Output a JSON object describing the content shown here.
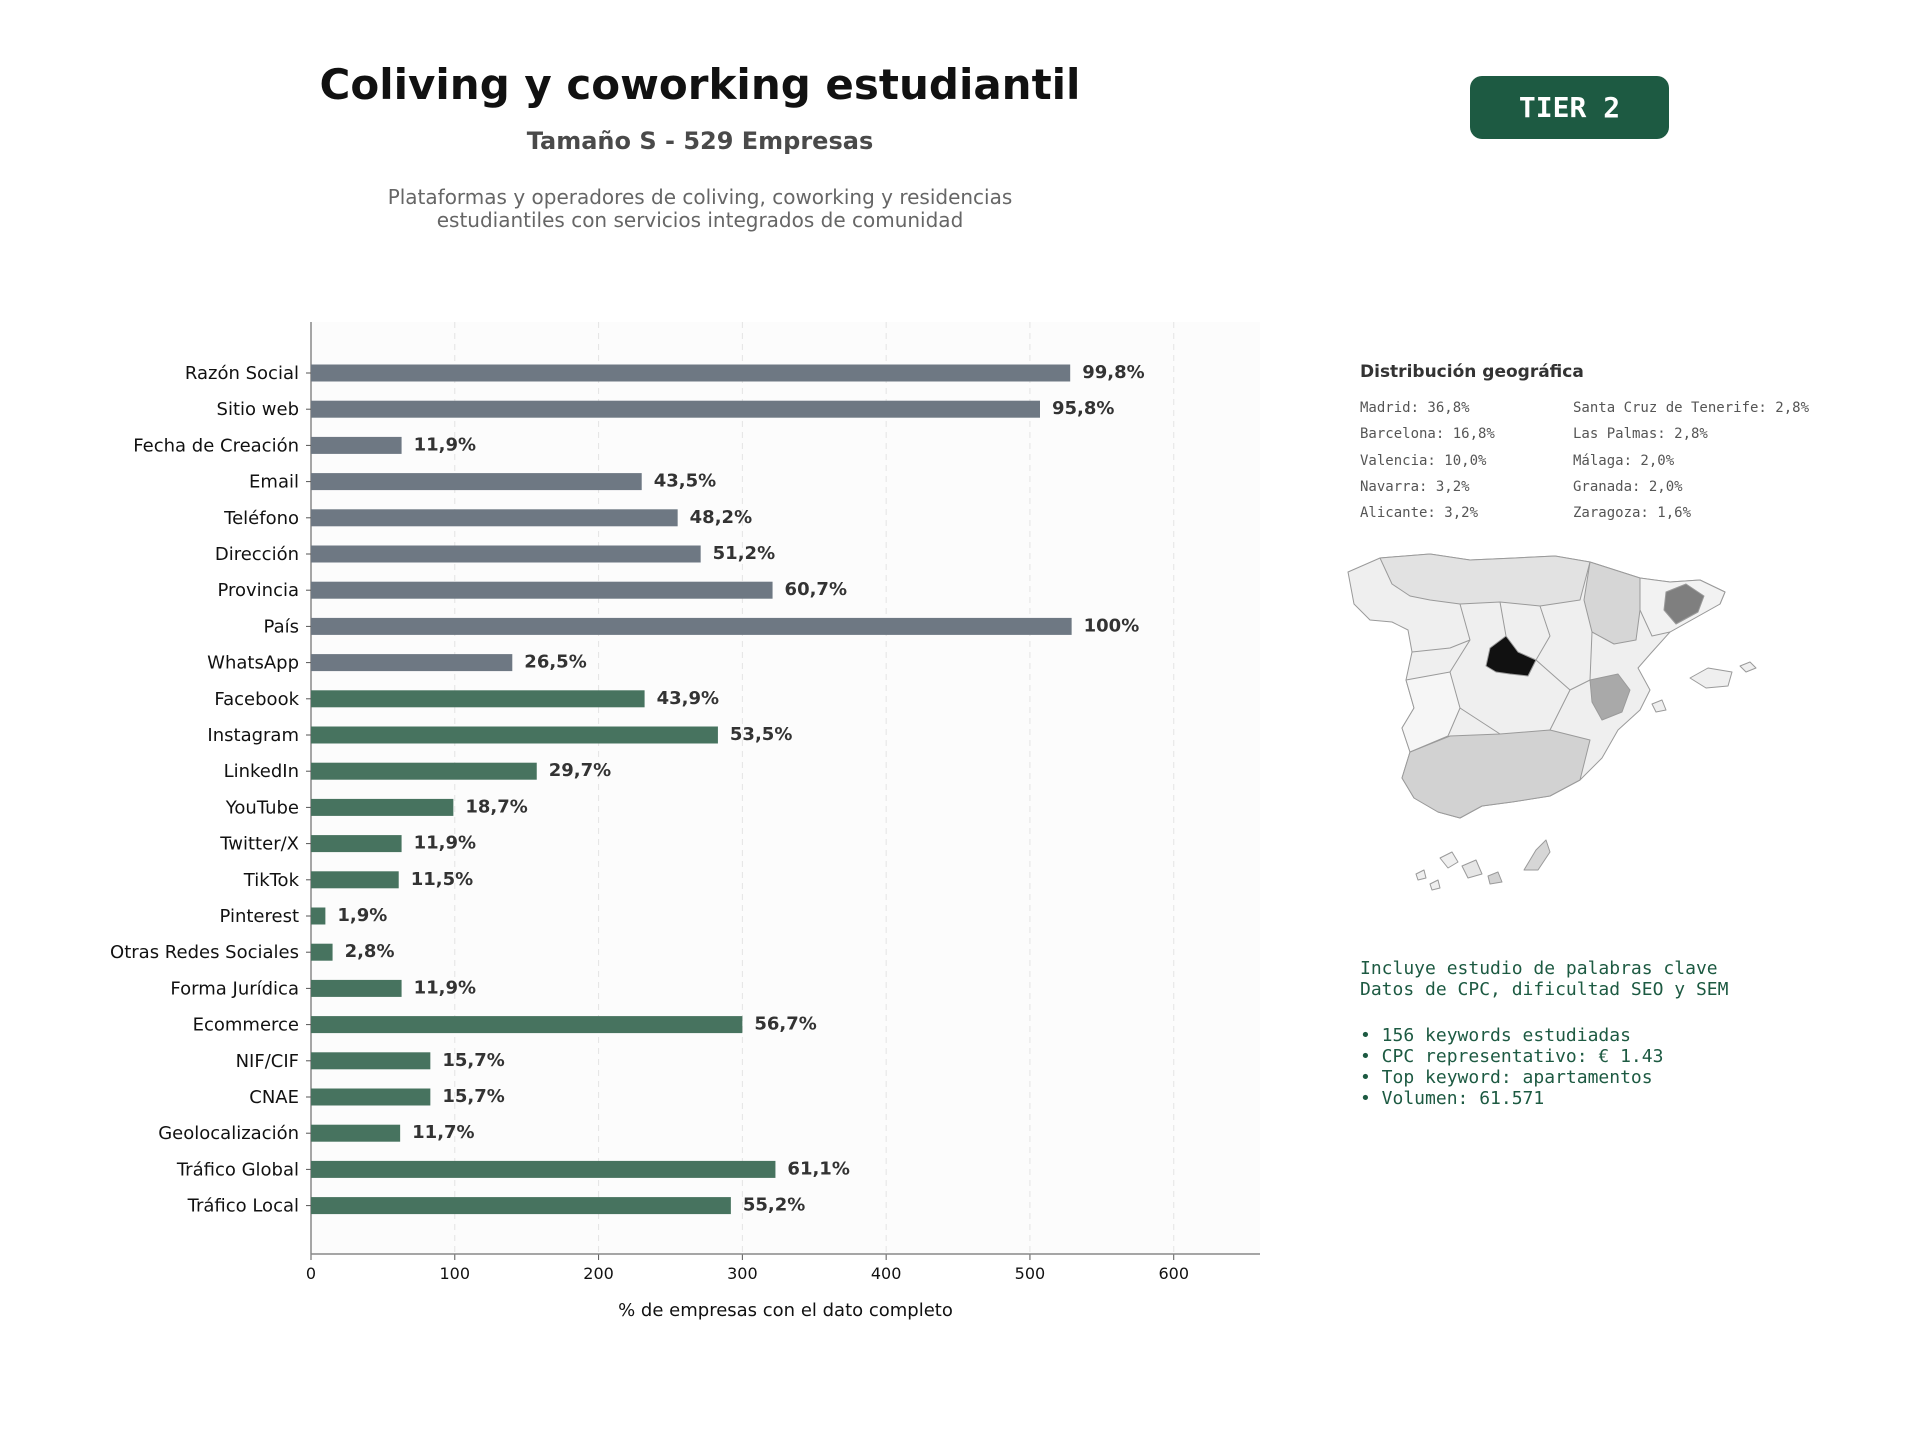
{
  "header": {
    "title": "Coliving y coworking estudiantil",
    "subtitle": "Tamaño S - 529 Empresas",
    "description_line1": "Plataformas y operadores de coliving, coworking y residencias",
    "description_line2": "estudiantiles con servicios integrados de comunidad",
    "tier": "TIER 2"
  },
  "colors": {
    "contact_bar": "#6e7883",
    "social_bar": "#47735f",
    "badge": "#1d5a42",
    "keywords_text": "#1d5a42"
  },
  "chart_data": {
    "type": "bar",
    "orientation": "horizontal",
    "xlabel": "% de empresas con el dato completo",
    "xlim": [
      0,
      660
    ],
    "xticks": [
      0,
      100,
      200,
      300,
      400,
      500,
      600
    ],
    "grid": "vertical dashed",
    "categories": [
      "Razón Social",
      "Sitio web",
      "Fecha de Creación",
      "Email",
      "Teléfono",
      "Dirección",
      "Provincia",
      "País",
      "WhatsApp",
      "Facebook",
      "Instagram",
      "LinkedIn",
      "YouTube",
      "Twitter/X",
      "TikTok",
      "Pinterest",
      "Otras Redes Sociales",
      "Forma Jurídica",
      "Ecommerce",
      "NIF/CIF",
      "CNAE",
      "Geolocalización",
      "Tráfico Global",
      "Tráfico Local"
    ],
    "values": [
      528,
      507,
      63,
      230,
      255,
      271,
      321,
      529,
      140,
      232,
      283,
      157,
      99,
      63,
      61,
      10,
      15,
      63,
      300,
      83,
      83,
      62,
      323,
      292
    ],
    "labels": [
      "99,8%",
      "95,8%",
      "11,9%",
      "43,5%",
      "48,2%",
      "51,2%",
      "60,7%",
      "100%",
      "26,5%",
      "43,9%",
      "53,5%",
      "29,7%",
      "18,7%",
      "11,9%",
      "11,5%",
      "1,9%",
      "2,8%",
      "11,9%",
      "56,7%",
      "15,7%",
      "15,7%",
      "11,7%",
      "61,1%",
      "55,2%"
    ],
    "groups": [
      "contact",
      "contact",
      "contact",
      "contact",
      "contact",
      "contact",
      "contact",
      "contact",
      "contact",
      "social",
      "social",
      "social",
      "social",
      "social",
      "social",
      "social",
      "social",
      "social",
      "social",
      "social",
      "social",
      "social",
      "social",
      "social"
    ]
  },
  "geo": {
    "title": "Distribución geográfica",
    "left": [
      "Madrid: 36,8%",
      "Barcelona: 16,8%",
      "Valencia: 10,0%",
      "Navarra: 3,2%",
      "Alicante: 3,2%"
    ],
    "right": [
      "Santa Cruz de Tenerife: 2,8%",
      "Las Palmas: 2,8%",
      "Málaga: 2,0%",
      "Granada: 2,0%",
      "Zaragoza: 1,6%"
    ]
  },
  "keywords": {
    "line1": "Incluye estudio de palabras clave",
    "line2": "Datos de CPC, dificultad SEO y SEM",
    "bullets": [
      "• 156 keywords estudiadas",
      "• CPC representativo: € 1.43",
      "• Top keyword: apartamentos",
      "• Volumen: 61.571"
    ]
  }
}
